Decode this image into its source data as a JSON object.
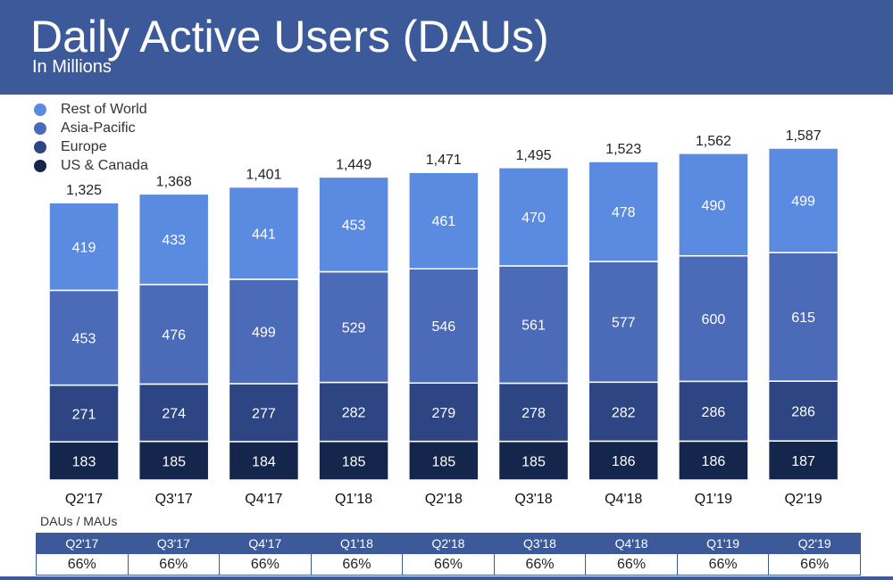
{
  "chart_data": {
    "type": "bar",
    "stacked": true,
    "title": "Daily Active Users (DAUs)",
    "subtitle": "In Millions",
    "categories": [
      "Q2'17",
      "Q3'17",
      "Q4'17",
      "Q1'18",
      "Q2'18",
      "Q3'18",
      "Q4'18",
      "Q1'19",
      "Q2'19"
    ],
    "series": [
      {
        "name": "US & Canada",
        "color": "#14264b",
        "values": [
          183,
          185,
          184,
          185,
          185,
          185,
          186,
          186,
          187
        ]
      },
      {
        "name": "Europe",
        "color": "#2d4683",
        "values": [
          271,
          274,
          277,
          282,
          279,
          278,
          282,
          286,
          286
        ]
      },
      {
        "name": "Asia-Pacific",
        "color": "#4b6bb9",
        "values": [
          453,
          476,
          499,
          529,
          546,
          561,
          577,
          600,
          615
        ]
      },
      {
        "name": "Rest of World",
        "color": "#5b8be0",
        "values": [
          419,
          433,
          441,
          453,
          461,
          470,
          478,
          490,
          499
        ]
      }
    ],
    "totals": [
      "1,325",
      "1,368",
      "1,401",
      "1,449",
      "1,471",
      "1,495",
      "1,523",
      "1,562",
      "1,587"
    ],
    "legend_position": "top-left",
    "grid": false
  },
  "ratio": {
    "title": "DAUs / MAUs",
    "quarters": [
      "Q2'17",
      "Q3'17",
      "Q4'17",
      "Q1'18",
      "Q2'18",
      "Q3'18",
      "Q4'18",
      "Q1'19",
      "Q2'19"
    ],
    "values": [
      "66%",
      "66%",
      "66%",
      "66%",
      "66%",
      "66%",
      "66%",
      "66%",
      "66%"
    ]
  }
}
